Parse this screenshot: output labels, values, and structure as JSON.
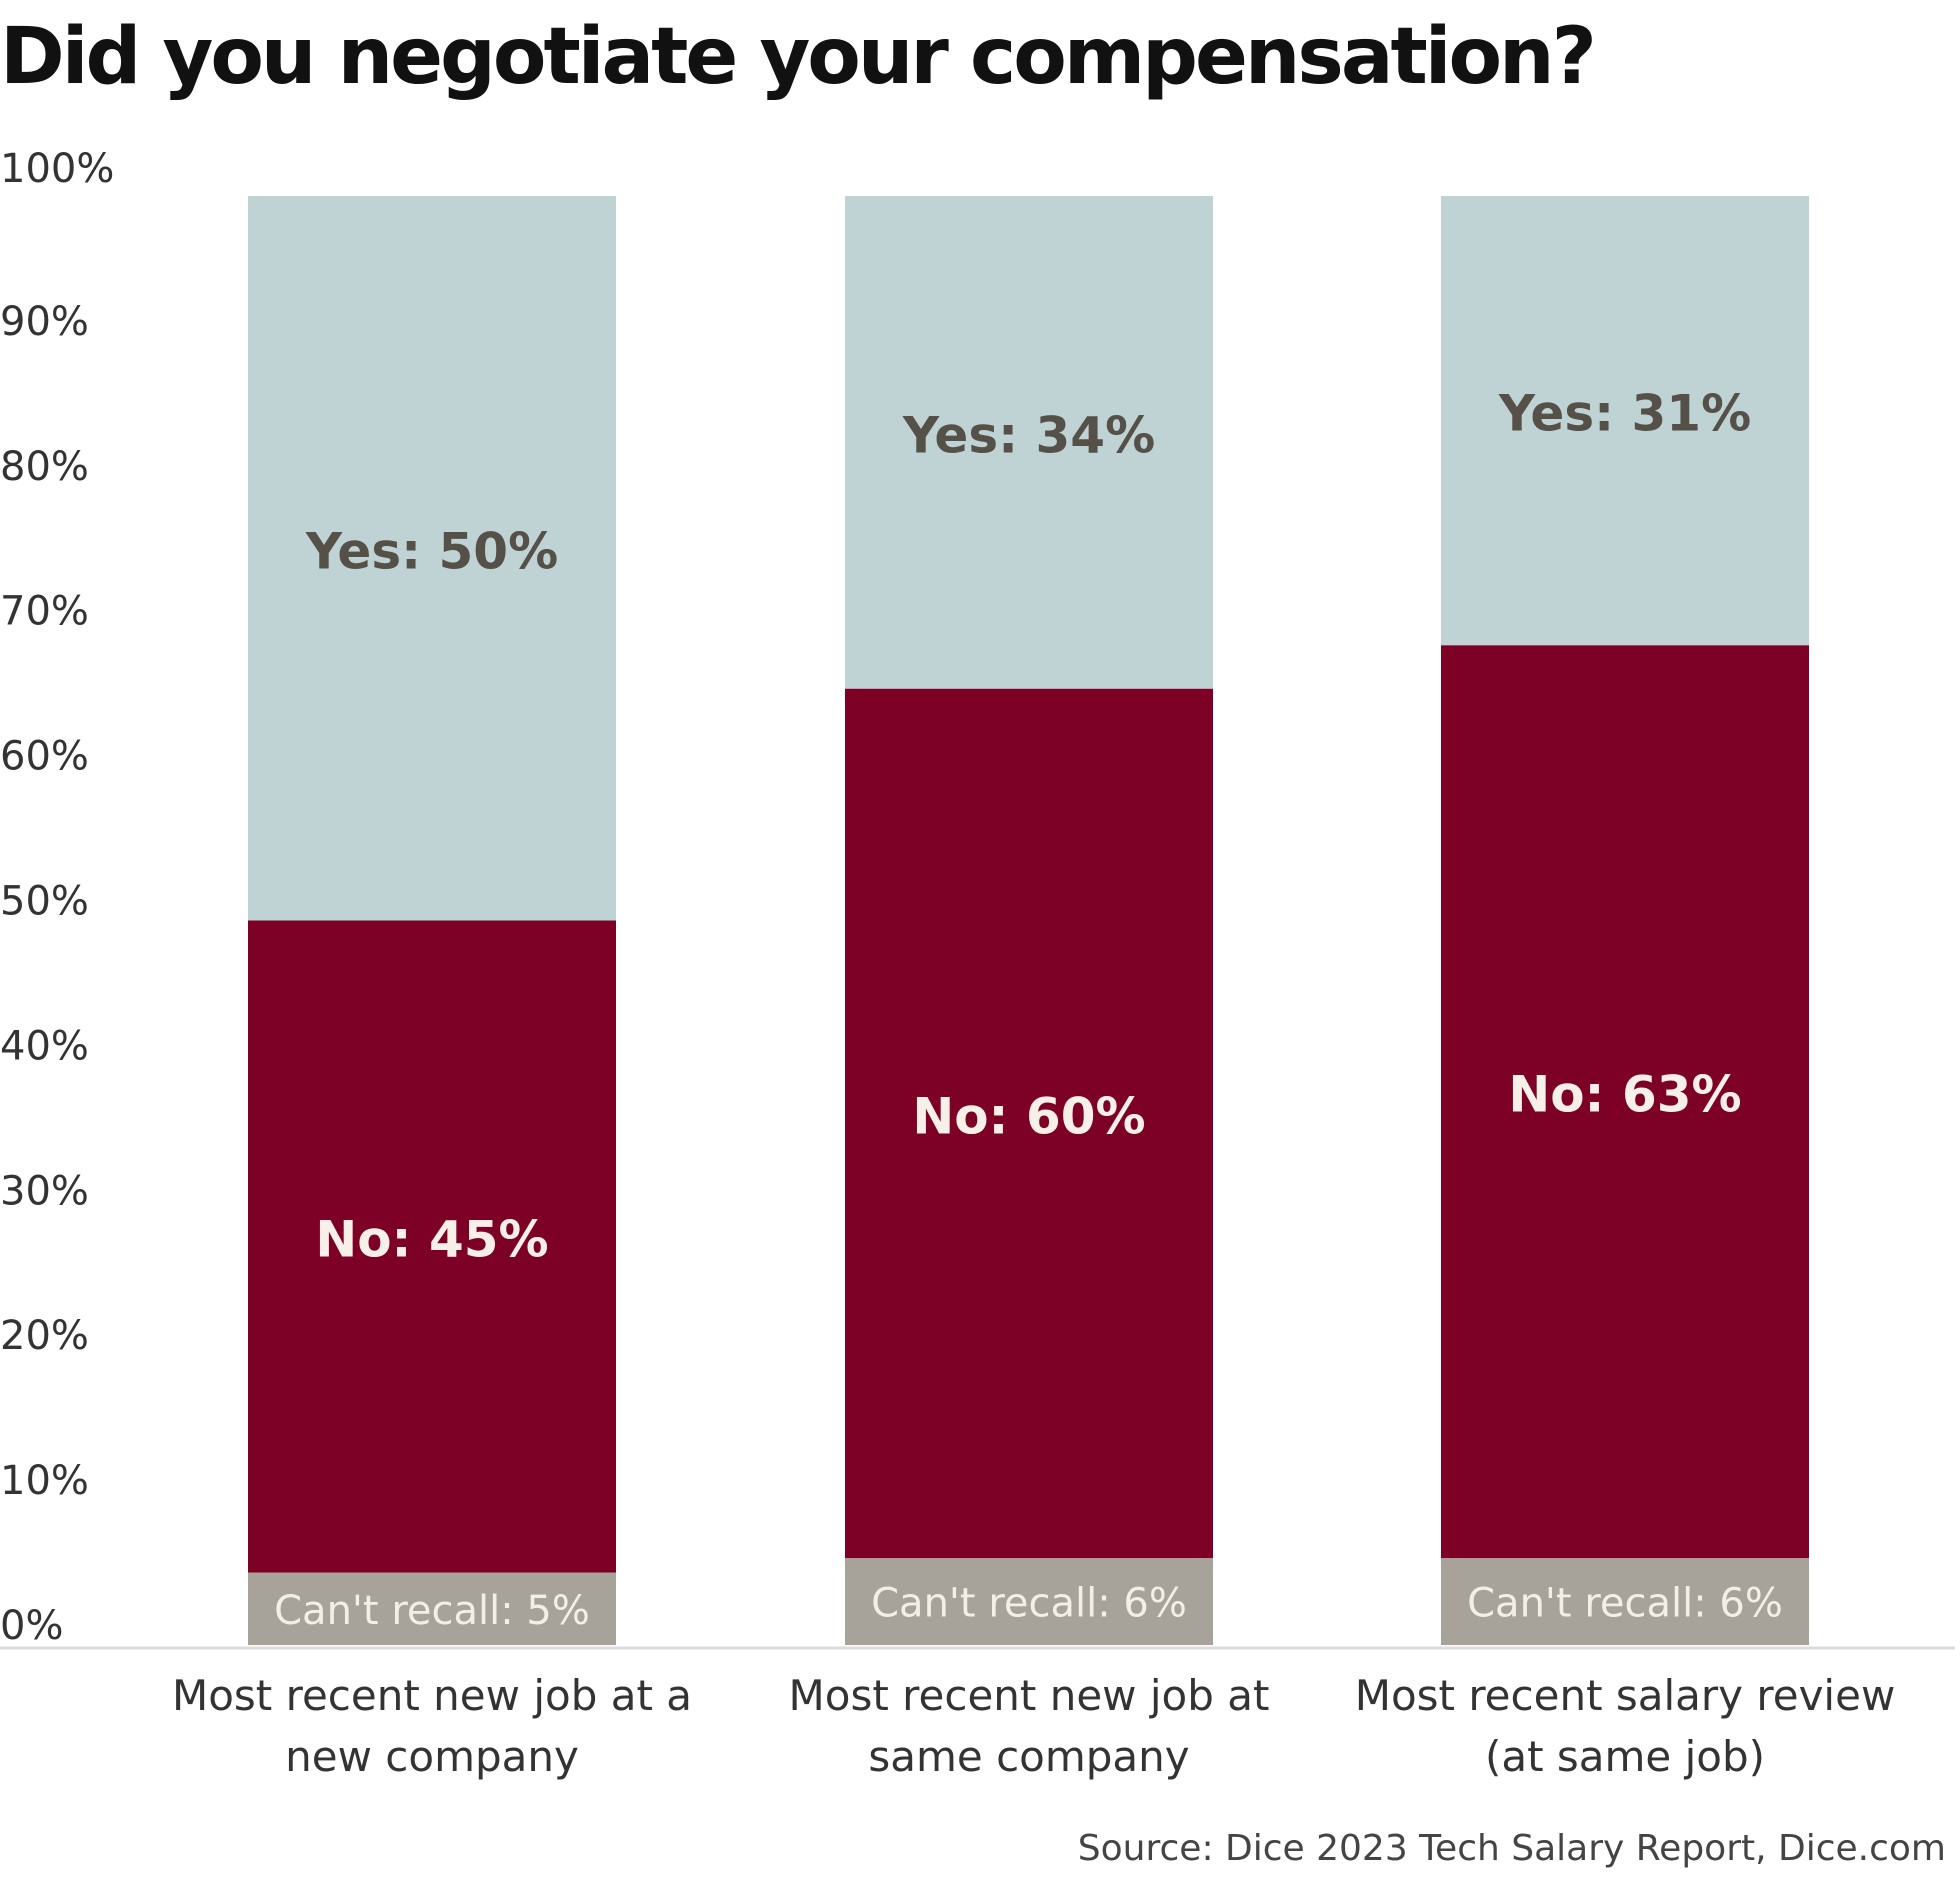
{
  "chart_data": {
    "type": "bar",
    "stacked": true,
    "title": "Did you negotiate your compensation?",
    "source": "Source: Dice 2023 Tech Salary Report, Dice.com",
    "ylim": [
      0,
      100
    ],
    "y_ticks": [
      "0%",
      "10%",
      "20%",
      "30%",
      "40%",
      "50%",
      "60%",
      "70%",
      "80%",
      "90%",
      "100%"
    ],
    "categories": [
      [
        "Most recent new job at a",
        "new company"
      ],
      [
        "Most recent new job at",
        "same company"
      ],
      [
        "Most recent salary review",
        "(at same job)"
      ]
    ],
    "series": [
      {
        "name": "Can't recall",
        "color": "#a8a39a",
        "label_color": "#f4efe6",
        "values": [
          5,
          6,
          6
        ],
        "labels": [
          "Can't recall: 5%",
          "Can't recall: 6%",
          "Can't recall: 6%"
        ]
      },
      {
        "name": "No",
        "color": "#7d0026",
        "label_color": "#f7f0e8",
        "values": [
          45,
          60,
          63
        ],
        "labels": [
          "No: 45%",
          "No: 60%",
          "No: 63%"
        ]
      },
      {
        "name": "Yes",
        "color": "#bfd3d4",
        "label_color": "#555048",
        "values": [
          50,
          34,
          31
        ],
        "labels": [
          "Yes: 50%",
          "Yes: 34%",
          "Yes: 31%"
        ]
      }
    ],
    "grid": false,
    "legend": "none"
  }
}
